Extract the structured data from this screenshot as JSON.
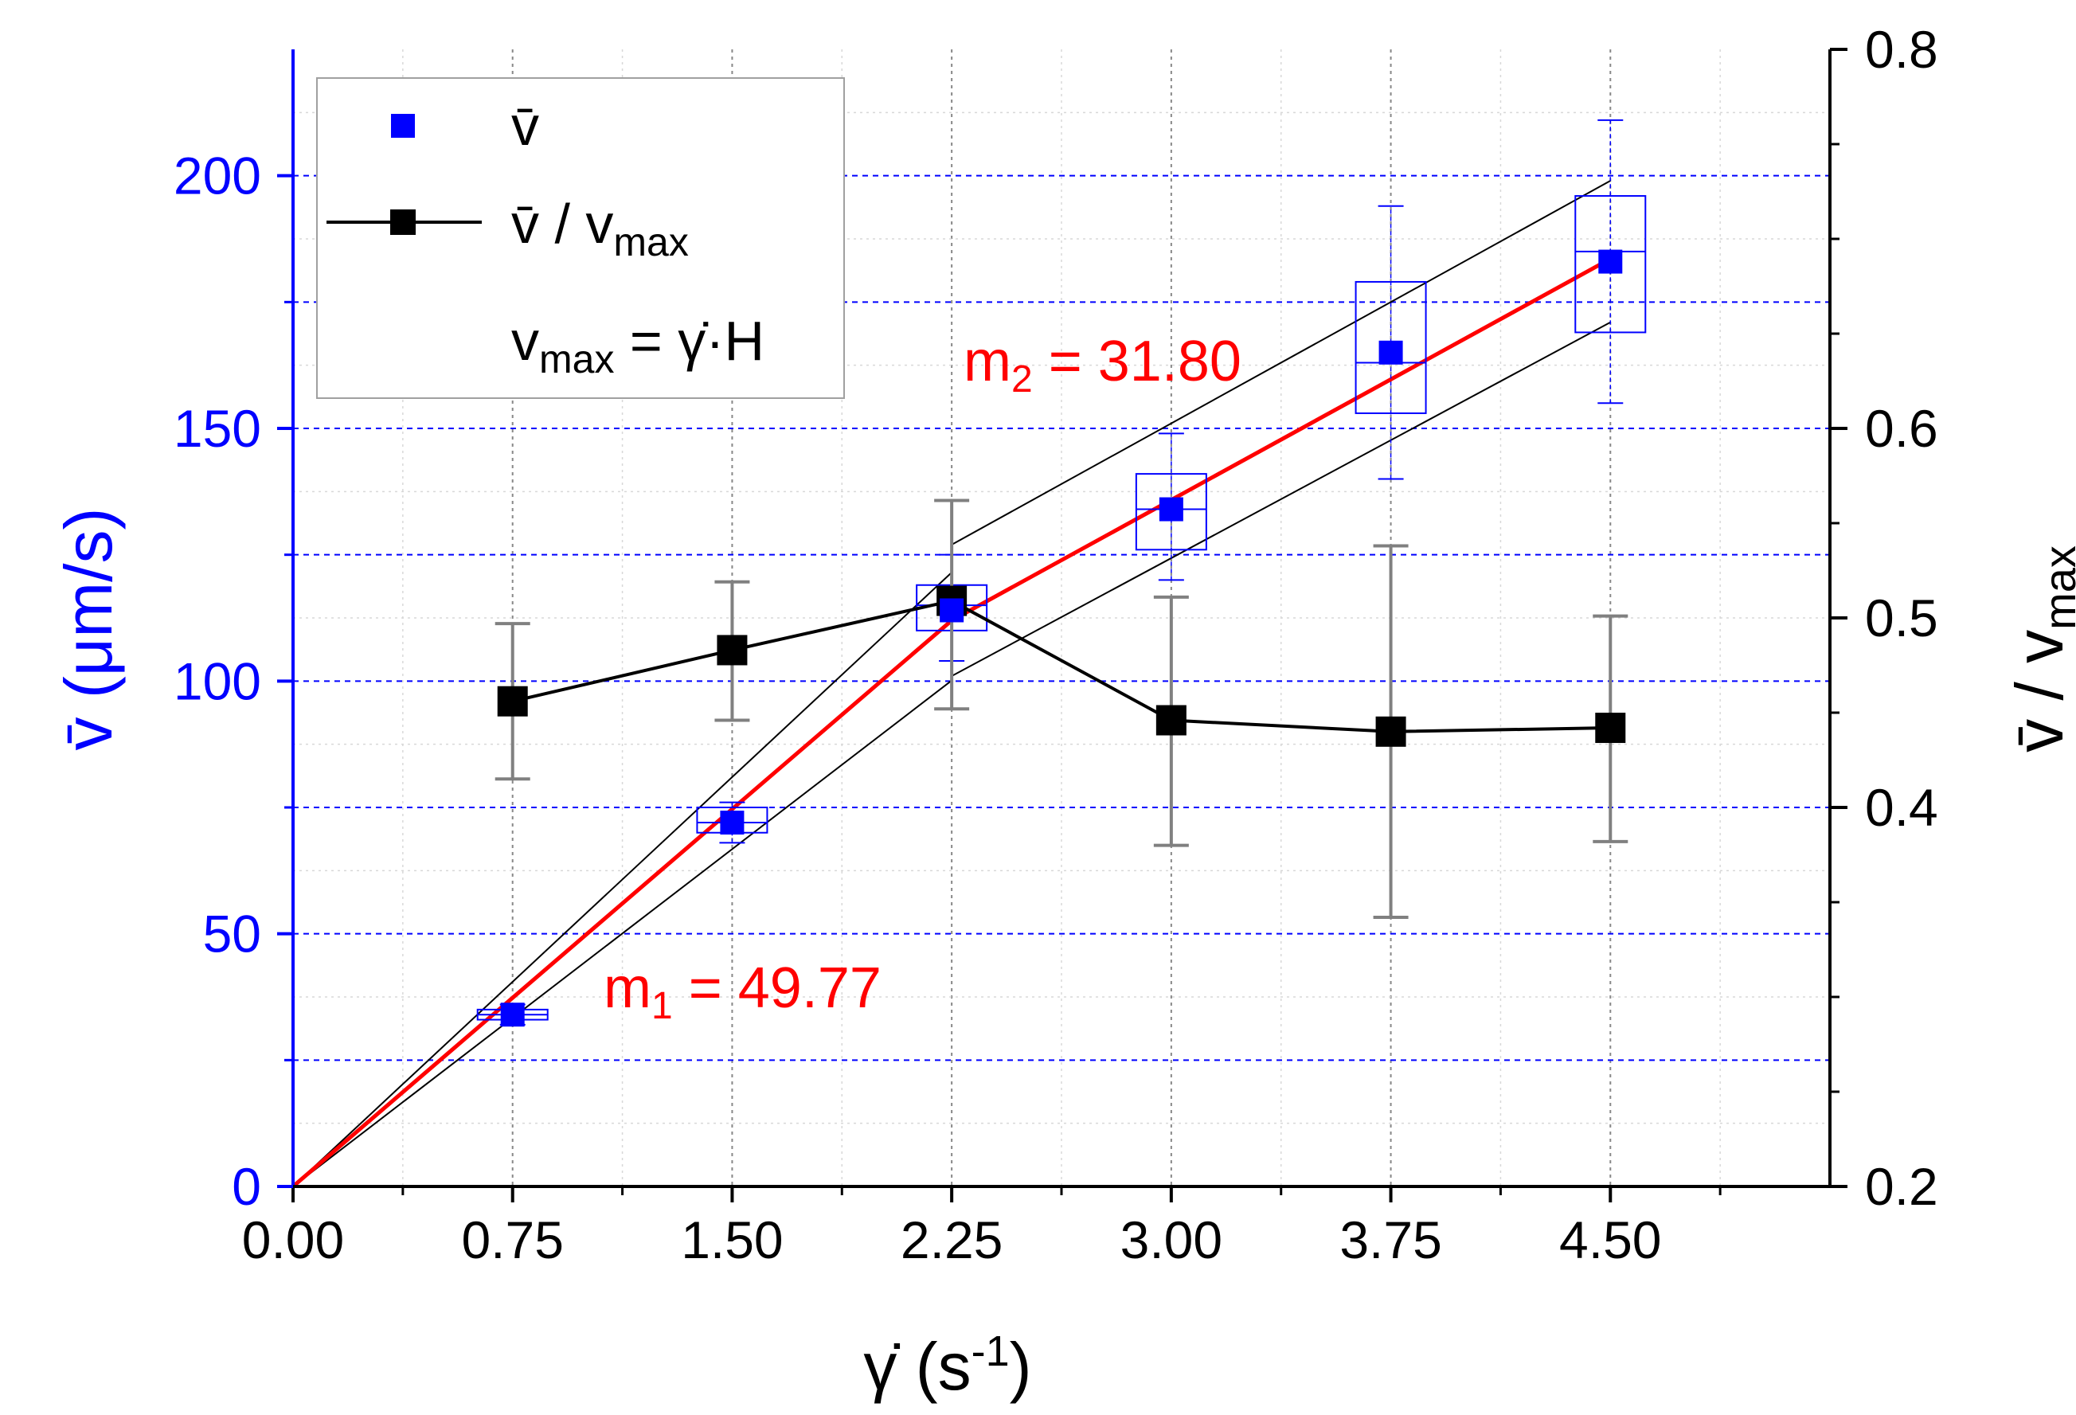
{
  "chart_data": {
    "type": "scatter",
    "title": "",
    "colors": {
      "left_axis": "#0000ff",
      "right_axis": "#000000",
      "fit": "#ff0000",
      "ratio": "#000000",
      "box": "#0000ff"
    },
    "x_axis": {
      "label_symbol": "γ̇",
      "label_rest": " (s",
      "label_sup": "-1",
      "label_close": ")",
      "range": [
        0,
        5.25
      ],
      "ticks": [
        "0.00",
        "0.75",
        "1.50",
        "2.25",
        "3.00",
        "3.75",
        "4.50"
      ],
      "tick_values": [
        0,
        0.75,
        1.5,
        2.25,
        3.0,
        3.75,
        4.5
      ]
    },
    "y_left": {
      "label_symbol": "v̄",
      "label_rest": " (μm/s)",
      "range": [
        0,
        225
      ],
      "ticks": [
        "0",
        "50",
        "100",
        "150",
        "200"
      ],
      "tick_values": [
        0,
        50,
        100,
        150,
        200
      ]
    },
    "y_right": {
      "label_symbol": "v̄",
      "label_rest": " / v",
      "label_sub": "max",
      "range": [
        0.2,
        0.8
      ],
      "ticks": [
        "0.2",
        "0.4",
        "0.5",
        "0.6",
        "0.8"
      ],
      "tick_values": [
        0.2,
        0.4,
        0.5,
        0.6,
        0.8
      ]
    },
    "series": [
      {
        "name": "v̄",
        "axis": "left",
        "marker": "square",
        "x": [
          0.75,
          1.5,
          2.25,
          3.0,
          3.75,
          4.5
        ],
        "y": [
          34,
          72,
          114,
          134,
          165,
          183
        ],
        "box_low": [
          33,
          70,
          110,
          126,
          153,
          169
        ],
        "box_high": [
          35,
          75,
          119,
          141,
          179,
          196
        ],
        "box_median": [
          34,
          72,
          115,
          134,
          163,
          185
        ],
        "err_low": [
          32,
          68,
          104,
          120,
          140,
          155
        ],
        "err_high": [
          36,
          76,
          125,
          149,
          194,
          211
        ]
      },
      {
        "name": "v̄ / vmax",
        "axis": "right",
        "marker": "square-line",
        "x": [
          0.75,
          1.5,
          2.25,
          3.0,
          3.75,
          4.5
        ],
        "y": [
          0.456,
          0.483,
          0.509,
          0.446,
          0.44,
          0.442
        ],
        "err_low": [
          0.415,
          0.446,
          0.452,
          0.38,
          0.342,
          0.382
        ],
        "err_high": [
          0.497,
          0.519,
          0.562,
          0.511,
          0.538,
          0.501
        ]
      }
    ],
    "fits": [
      {
        "label_main": "m",
        "label_sub": "1",
        "label_rest": " = 49.77",
        "slope": 49.77,
        "x_range": [
          0,
          2.25
        ],
        "band_upper_slope": 54,
        "band_lower_slope": 44.5
      },
      {
        "label_main": "m",
        "label_sub": "2",
        "label_rest": " = 31.80",
        "slope": 31.8,
        "x_start": 2.25,
        "y_start": 112,
        "x_end": 4.5,
        "band_upper": [
          [
            2.25,
            127
          ],
          [
            4.5,
            199
          ]
        ],
        "band_lower": [
          [
            2.25,
            101
          ],
          [
            4.5,
            171
          ]
        ]
      }
    ],
    "legend": {
      "position": "top-left",
      "entry1": {
        "main": "v̄"
      },
      "entry2": {
        "main": "v̄ / v",
        "sub": "max"
      },
      "entry3": {
        "main": "v",
        "sub": "max",
        "rest": " = ",
        "gamma": "γ̇",
        "tail": "·H"
      }
    },
    "grid": true
  }
}
